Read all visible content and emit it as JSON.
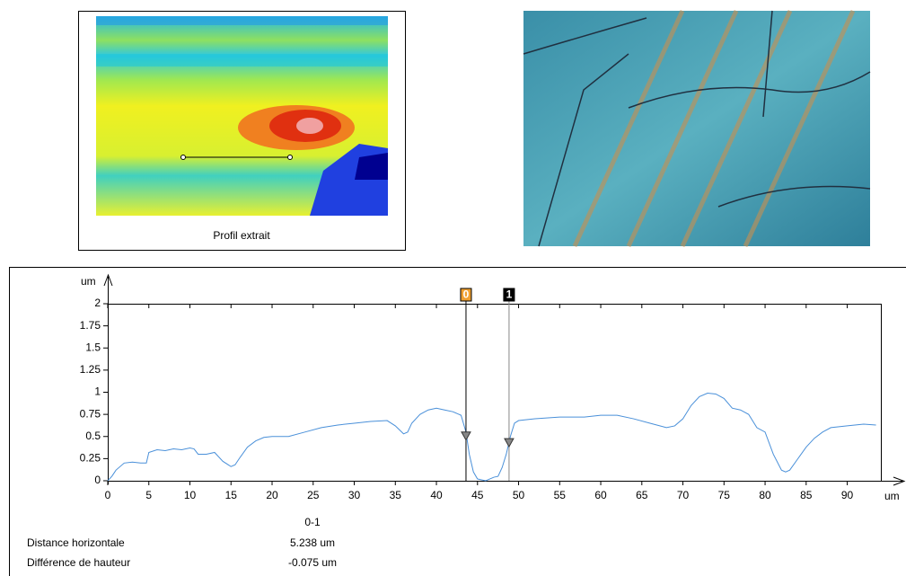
{
  "map_caption": "Profil extrait",
  "chart_data": {
    "type": "line",
    "x": [
      0,
      0.5,
      1,
      2,
      3,
      4,
      4.7,
      5,
      6,
      7,
      8,
      9,
      10,
      10.5,
      11,
      12,
      13,
      14,
      15,
      15.5,
      16,
      17,
      18,
      19,
      20,
      22,
      24,
      26,
      28,
      30,
      32,
      34,
      35,
      36,
      36.5,
      37,
      38,
      39,
      40,
      41,
      42,
      43,
      43.6,
      44,
      44.5,
      45,
      46,
      47,
      47.5,
      48,
      48.5,
      49,
      49.5,
      50,
      52,
      55,
      58,
      60,
      62,
      64,
      66,
      68,
      69,
      70,
      71,
      72,
      73,
      74,
      75,
      76,
      77,
      78,
      79,
      80,
      81,
      82,
      82.5,
      83,
      84,
      85,
      86,
      87,
      88,
      90,
      92,
      93.5
    ],
    "series": [
      {
        "color": "#4a90d9",
        "values": [
          0,
          0.05,
          0.12,
          0.2,
          0.21,
          0.2,
          0.2,
          0.32,
          0.35,
          0.34,
          0.36,
          0.35,
          0.37,
          0.36,
          0.3,
          0.3,
          0.32,
          0.22,
          0.16,
          0.18,
          0.25,
          0.38,
          0.45,
          0.49,
          0.5,
          0.5,
          0.55,
          0.6,
          0.63,
          0.65,
          0.67,
          0.68,
          0.62,
          0.53,
          0.55,
          0.65,
          0.75,
          0.8,
          0.82,
          0.8,
          0.78,
          0.74,
          0.55,
          0.3,
          0.1,
          0.02,
          0,
          0.04,
          0.05,
          0.15,
          0.3,
          0.5,
          0.65,
          0.68,
          0.7,
          0.72,
          0.72,
          0.74,
          0.74,
          0.7,
          0.65,
          0.6,
          0.62,
          0.7,
          0.85,
          0.95,
          0.99,
          0.98,
          0.93,
          0.82,
          0.8,
          0.75,
          0.6,
          0.55,
          0.3,
          0.12,
          0.1,
          0.12,
          0.25,
          0.38,
          0.48,
          0.55,
          0.6,
          0.62,
          0.64,
          0.63
        ]
      }
    ],
    "xlim": [
      0,
      94.2
    ],
    "ylim": [
      0,
      2
    ],
    "xticks": [
      0,
      5,
      10,
      15,
      20,
      25,
      30,
      35,
      40,
      45,
      50,
      55,
      60,
      65,
      70,
      75,
      80,
      85,
      90
    ],
    "yticks": [
      0,
      0.25,
      0.5,
      0.75,
      1,
      1.25,
      1.5,
      1.75,
      2
    ],
    "xlabel": "um",
    "ylabel": "um",
    "cursors": [
      {
        "label": "0",
        "x": 43.6,
        "y": 0.5,
        "color": "#f0a030"
      },
      {
        "label": "1",
        "x": 48.84,
        "y": 0.425,
        "color": "#000000"
      }
    ]
  },
  "measurements": {
    "header": "0-1",
    "rows": [
      [
        "Distance horizontale",
        "5.238 um"
      ],
      [
        "Différence de hauteur",
        "-0.075 um"
      ]
    ]
  }
}
